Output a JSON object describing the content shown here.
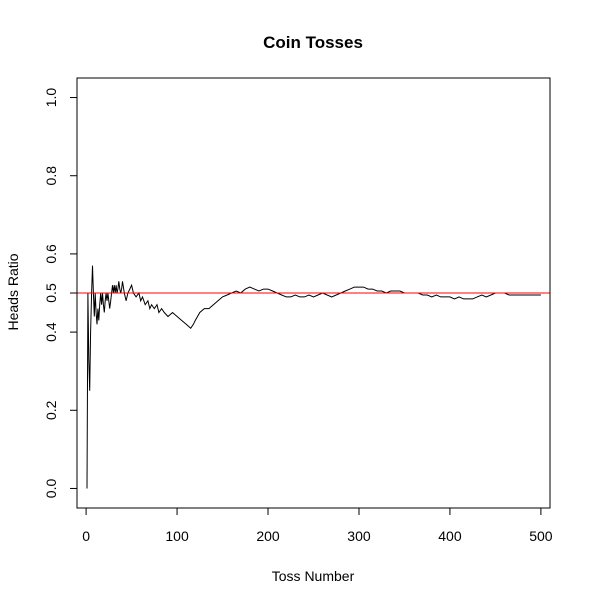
{
  "chart_data": {
    "type": "line",
    "title": "Coin Tosses",
    "xlabel": "Toss Number",
    "ylabel": "Heads Ratio",
    "xlim": [
      -10,
      510
    ],
    "ylim": [
      -0.05,
      1.05
    ],
    "x_ticks": [
      "0",
      "100",
      "200",
      "300",
      "400",
      "500"
    ],
    "y_ticks": [
      "0.0",
      "0.2",
      "0.4",
      "0.5",
      "0.6",
      "0.8",
      "1.0"
    ],
    "reference_line": {
      "y": 0.5,
      "color": "#ff0000"
    },
    "line_color": "#000000",
    "grid": false,
    "series": [
      {
        "name": "",
        "x": [
          1,
          2,
          3,
          4,
          5,
          6,
          7,
          8,
          9,
          10,
          11,
          12,
          13,
          14,
          15,
          16,
          17,
          18,
          19,
          20,
          21,
          22,
          23,
          24,
          25,
          26,
          27,
          28,
          29,
          30,
          31,
          32,
          33,
          34,
          35,
          36,
          37,
          38,
          39,
          40,
          42,
          44,
          46,
          48,
          50,
          52,
          55,
          58,
          60,
          62,
          65,
          68,
          70,
          72,
          75,
          78,
          80,
          83,
          86,
          90,
          95,
          100,
          105,
          110,
          115,
          118,
          120,
          125,
          130,
          135,
          140,
          145,
          150,
          155,
          160,
          165,
          170,
          175,
          180,
          185,
          190,
          195,
          200,
          205,
          210,
          215,
          220,
          225,
          230,
          235,
          240,
          245,
          250,
          255,
          260,
          265,
          270,
          275,
          280,
          285,
          290,
          295,
          300,
          305,
          310,
          315,
          320,
          325,
          330,
          335,
          340,
          345,
          350,
          355,
          360,
          365,
          370,
          375,
          380,
          385,
          390,
          395,
          400,
          405,
          410,
          415,
          420,
          425,
          430,
          435,
          440,
          445,
          450,
          455,
          460,
          465,
          470,
          475,
          480,
          485,
          490,
          495,
          500
        ],
        "y": [
          0.0,
          0.5,
          0.33,
          0.25,
          0.4,
          0.5,
          0.57,
          0.5,
          0.44,
          0.5,
          0.45,
          0.42,
          0.46,
          0.43,
          0.47,
          0.5,
          0.47,
          0.5,
          0.47,
          0.45,
          0.48,
          0.5,
          0.48,
          0.5,
          0.48,
          0.46,
          0.48,
          0.5,
          0.52,
          0.5,
          0.52,
          0.5,
          0.52,
          0.5,
          0.51,
          0.53,
          0.51,
          0.5,
          0.51,
          0.53,
          0.5,
          0.48,
          0.5,
          0.51,
          0.52,
          0.5,
          0.49,
          0.5,
          0.48,
          0.49,
          0.47,
          0.48,
          0.46,
          0.47,
          0.46,
          0.47,
          0.45,
          0.46,
          0.45,
          0.44,
          0.45,
          0.44,
          0.43,
          0.42,
          0.41,
          0.42,
          0.43,
          0.45,
          0.46,
          0.46,
          0.47,
          0.48,
          0.49,
          0.495,
          0.5,
          0.505,
          0.5,
          0.51,
          0.515,
          0.51,
          0.505,
          0.51,
          0.51,
          0.505,
          0.5,
          0.495,
          0.49,
          0.49,
          0.495,
          0.49,
          0.49,
          0.495,
          0.49,
          0.495,
          0.5,
          0.495,
          0.49,
          0.495,
          0.5,
          0.505,
          0.51,
          0.515,
          0.515,
          0.515,
          0.51,
          0.51,
          0.505,
          0.505,
          0.5,
          0.505,
          0.505,
          0.505,
          0.5,
          0.5,
          0.5,
          0.5,
          0.495,
          0.495,
          0.49,
          0.495,
          0.49,
          0.49,
          0.49,
          0.485,
          0.49,
          0.485,
          0.485,
          0.485,
          0.49,
          0.495,
          0.49,
          0.495,
          0.5,
          0.5,
          0.5,
          0.495,
          0.495,
          0.495,
          0.495,
          0.495,
          0.495,
          0.495,
          0.495
        ]
      }
    ]
  }
}
